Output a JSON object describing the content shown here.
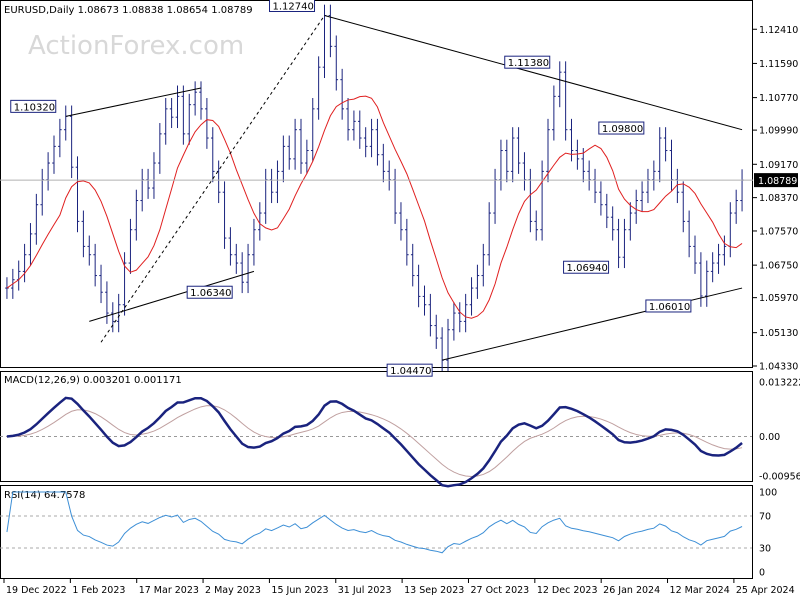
{
  "chart_data": [
    {
      "type": "candlestick",
      "symbol_header": "EURUSD,Daily  1.08673 1.08838 1.08654 1.08789",
      "watermark": "ActionForex.com",
      "ylim": [
        1.0433,
        1.1292
      ],
      "y_ticks": [
        "1.12410",
        "1.11590",
        "1.10770",
        "1.09990",
        "1.09170",
        "1.08370",
        "1.07570",
        "1.06750",
        "1.05970",
        "1.05130",
        "1.04330"
      ],
      "current_price_label": "1.08789",
      "x_ticks": [
        "19 Dec 2022",
        "1 Feb 2023",
        "17 Mar 2023",
        "2 May 2023",
        "15 Jun 2023",
        "31 Jul 2023",
        "13 Sep 2023",
        "27 Oct 2023",
        "12 Dec 2023",
        "26 Jan 2024",
        "12 Mar 2024",
        "25 Apr 2024"
      ],
      "series": [
        {
          "name": "close",
          "values": [
            1.062,
            1.064,
            1.066,
            1.07,
            1.075,
            1.082,
            1.088,
            1.092,
            1.096,
            1.1,
            1.1032,
            1.091,
            1.078,
            1.072,
            1.07,
            1.065,
            1.061,
            1.056,
            1.054,
            1.058,
            1.068,
            1.076,
            1.083,
            1.088,
            1.086,
            1.092,
            1.099,
            1.105,
            1.103,
            1.108,
            1.099,
            1.106,
            1.109,
            1.105,
            1.098,
            1.09,
            1.085,
            1.074,
            1.07,
            1.068,
            1.0634,
            1.07,
            1.076,
            1.08,
            1.088,
            1.085,
            1.09,
            1.096,
            1.093,
            1.1,
            1.092,
            1.095,
            1.105,
            1.115,
            1.1274,
            1.12,
            1.112,
            1.105,
            1.1,
            1.102,
            1.098,
            1.096,
            1.1,
            1.094,
            1.09,
            1.088,
            1.08,
            1.076,
            1.07,
            1.065,
            1.06,
            1.058,
            1.053,
            1.05,
            1.0447,
            1.052,
            1.056,
            1.054,
            1.058,
            1.062,
            1.065,
            1.07,
            1.08,
            1.088,
            1.095,
            1.09,
            1.098,
            1.092,
            1.088,
            1.078,
            1.076,
            1.09,
            1.1,
            1.108,
            1.1138,
            1.1,
            1.095,
            1.093,
            1.09,
            1.088,
            1.085,
            1.082,
            1.079,
            1.076,
            1.0694,
            1.076,
            1.08,
            1.083,
            1.085,
            1.088,
            1.09,
            1.098,
            1.095,
            1.088,
            1.085,
            1.078,
            1.072,
            1.068,
            1.0601,
            1.066,
            1.068,
            1.07,
            1.072,
            1.08,
            1.083,
            1.0879
          ]
        },
        {
          "name": "MA",
          "role": "moving average (red)"
        },
        {
          "name": "MACD(12,26,9) 0.003201 0.001171",
          "y_ticks": [
            "0.013222",
            "0.00",
            "-0.009568"
          ]
        },
        {
          "name": "RSI(14) 64.7578",
          "y_ticks": [
            "100",
            "70",
            "30",
            "0"
          ]
        }
      ],
      "annotations": [
        "1.12740",
        "1.11380",
        "1.10320",
        "1.09800",
        "1.06940",
        "1.06340",
        "1.06010",
        "1.04470"
      ],
      "colors": {
        "candles": "#1a237e",
        "ma": "#e02020",
        "macd": "#1a237e",
        "signal": "#c0a0a0",
        "rsi": "#3d8fd6"
      },
      "grid": false
    }
  ]
}
